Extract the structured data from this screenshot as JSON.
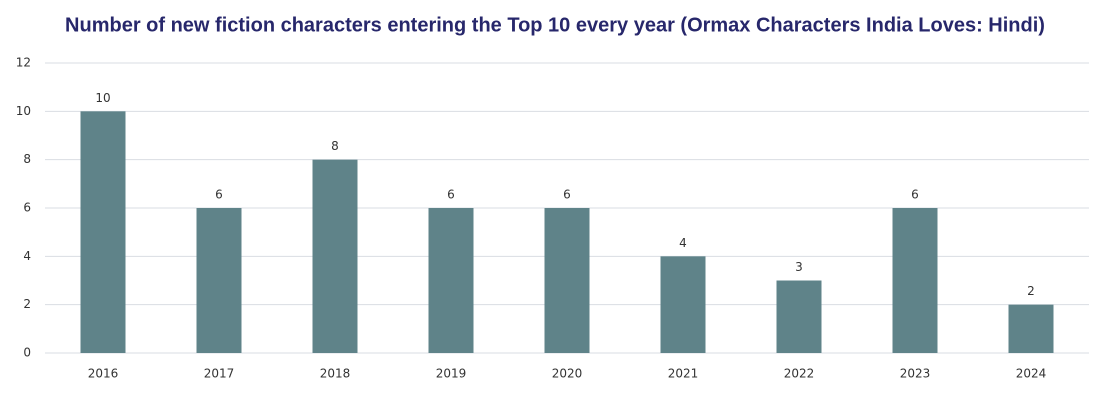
{
  "chart_data": {
    "type": "bar",
    "title": "Number of new fiction characters entering the Top 10 every year (Ormax Characters India Loves: Hindi)",
    "categories": [
      "2016",
      "2017",
      "2018",
      "2019",
      "2020",
      "2021",
      "2022",
      "2023",
      "2024"
    ],
    "values": [
      10,
      6,
      8,
      6,
      6,
      4,
      3,
      6,
      2
    ],
    "color": "#5f8389",
    "ylim": [
      0,
      12
    ],
    "yticks": [
      0,
      2,
      4,
      6,
      8,
      10,
      12
    ],
    "grid": true
  }
}
